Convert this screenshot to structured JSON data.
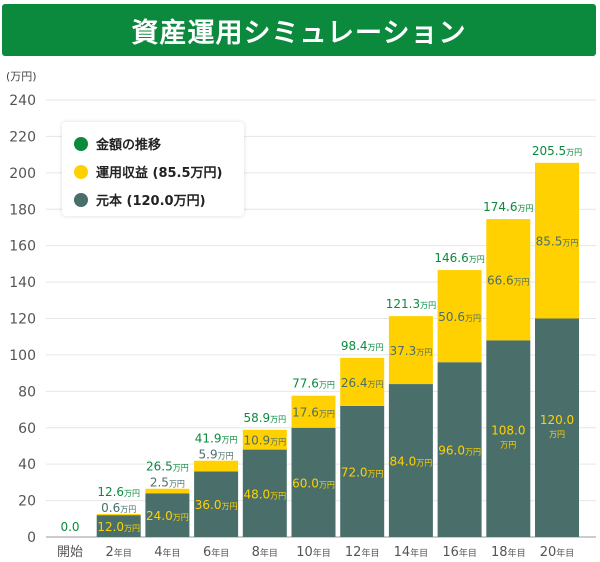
{
  "title": "資産運用シミュレーション",
  "unit_label": "(万円)",
  "legend": [
    {
      "label": "金額の推移",
      "color": "#0b8a3e"
    },
    {
      "label": "運用収益 (85.5万円)",
      "color": "#ffd100"
    },
    {
      "label": "元本 (120.0万円)",
      "color": "#4a6f6b"
    }
  ],
  "colors": {
    "principal": "#4a6f6b",
    "gain": "#ffd100",
    "total_text": "#0b8a3e",
    "principal_text": "#ffd100",
    "gain_text": "#4a6f6b",
    "grid": "#e6e6e6",
    "axis_text": "#555555"
  },
  "chart_data": {
    "type": "bar",
    "stacked": true,
    "title": "資産運用シミュレーション",
    "ylabel": "(万円)",
    "ylim": [
      0,
      240
    ],
    "yticks": [
      0,
      20,
      40,
      60,
      80,
      100,
      120,
      140,
      160,
      180,
      200,
      220,
      240
    ],
    "unit": "万円",
    "categories": [
      {
        "num": "",
        "suffix": "開始"
      },
      {
        "num": "2",
        "suffix": "年目"
      },
      {
        "num": "4",
        "suffix": "年目"
      },
      {
        "num": "6",
        "suffix": "年目"
      },
      {
        "num": "8",
        "suffix": "年目"
      },
      {
        "num": "10",
        "suffix": "年目"
      },
      {
        "num": "12",
        "suffix": "年目"
      },
      {
        "num": "14",
        "suffix": "年目"
      },
      {
        "num": "16",
        "suffix": "年目"
      },
      {
        "num": "18",
        "suffix": "年目"
      },
      {
        "num": "20",
        "suffix": "年目"
      }
    ],
    "series": [
      {
        "name": "元本",
        "values": [
          0,
          12.0,
          24.0,
          36.0,
          48.0,
          60.0,
          72.0,
          84.0,
          96.0,
          108.0,
          120.0
        ],
        "labels": [
          "",
          "12.0",
          "24.0",
          "36.0",
          "48.0",
          "60.0",
          "72.0",
          "84.0",
          "96.0",
          "108.0",
          "120.0"
        ]
      },
      {
        "name": "運用収益",
        "values": [
          0,
          0.6,
          2.5,
          5.9,
          10.9,
          17.6,
          26.4,
          37.3,
          50.6,
          66.6,
          85.5
        ],
        "labels": [
          "",
          "0.6",
          "2.5",
          "5.9",
          "10.9",
          "17.6",
          "26.4",
          "37.3",
          "50.6",
          "66.6",
          "85.5"
        ]
      }
    ],
    "totals": [
      0.0,
      12.6,
      26.5,
      41.9,
      58.9,
      77.6,
      98.4,
      121.3,
      146.6,
      174.6,
      205.5
    ],
    "total_labels": [
      "0.0",
      "12.6",
      "26.5",
      "41.9",
      "58.9",
      "77.6",
      "98.4",
      "121.3",
      "146.6",
      "174.6",
      "205.5"
    ]
  }
}
